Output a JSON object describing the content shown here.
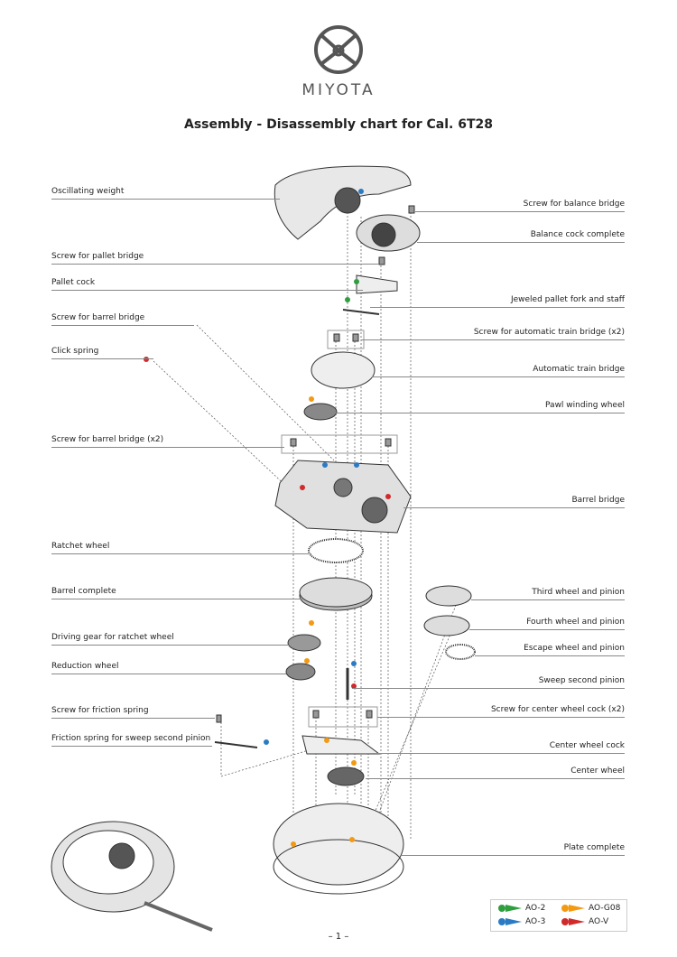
{
  "logo": {
    "text": "MIYOTA"
  },
  "title": "Assembly - Disassembly chart for Cal. 6T28",
  "left_labels": [
    "Oscillating weight",
    "Screw for pallet bridge",
    "Pallet cock",
    "Screw for barrel bridge",
    "Click spring",
    "Screw for barrel bridge (x2)",
    "Ratchet wheel",
    "Barrel complete",
    "Driving gear for ratchet wheel",
    "Reduction wheel",
    "Screw for friction spring",
    "Friction spring for sweep second pinion"
  ],
  "right_labels": [
    "Screw for balance bridge",
    "Balance cock complete",
    "Jeweled pallet fork and staff",
    "Screw for automatic train bridge (x2)",
    "Automatic train bridge",
    "Pawl winding wheel",
    "Barrel bridge",
    "Third wheel and pinion",
    "Fourth wheel and pinion",
    "Escape wheel and pinion",
    "Sweep second pinion",
    "Screw for center wheel cock (x2)",
    "Center wheel cock",
    "Center wheel",
    "Plate complete"
  ],
  "legend": [
    {
      "label": "AO-2",
      "color": "#2e9e3e"
    },
    {
      "label": "AO-G08",
      "color": "#f39a12"
    },
    {
      "label": "AO-3",
      "color": "#2a7bc4"
    },
    {
      "label": "AO-V",
      "color": "#d12a2a"
    }
  ],
  "page_number": "– 1 –"
}
